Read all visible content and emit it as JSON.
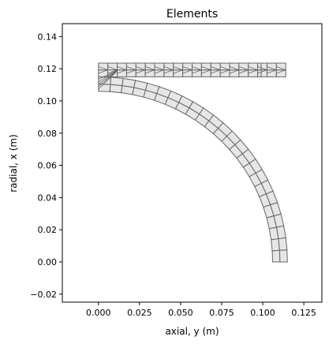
{
  "chart_data": {
    "type": "mesh",
    "title": "Elements",
    "xlabel": "axial, y (m)",
    "ylabel": "radial, x (m)",
    "xlim": [
      -0.022,
      0.136
    ],
    "ylim": [
      -0.025,
      0.148
    ],
    "xticks": [
      0.0,
      0.025,
      0.05,
      0.075,
      0.1,
      0.125
    ],
    "xtick_labels": [
      "0.000",
      "0.025",
      "0.050",
      "0.075",
      "0.100",
      "0.125"
    ],
    "yticks": [
      -0.02,
      0.0,
      0.02,
      0.04,
      0.06,
      0.08,
      0.1,
      0.12,
      0.14
    ],
    "ytick_labels": [
      "−0.02",
      "0.00",
      "0.02",
      "0.04",
      "0.06",
      "0.08",
      "0.10",
      "0.12",
      "0.14"
    ],
    "grid": false,
    "colors": {
      "fill": "#e6e6e6",
      "edge": "#666666"
    },
    "arc": {
      "center": [
        0.0,
        0.0
      ],
      "inner_radius": 0.106,
      "outer_radius": 0.115,
      "angle_start_deg": 0,
      "angle_end_deg": 90,
      "angular_divisions": 24,
      "radial_divisions": 2
    },
    "flange": {
      "y_min": 0.0,
      "y_max": 0.114,
      "x_min": 0.115,
      "x_max": 0.1235,
      "axial_divisions": 20,
      "radial_divisions": 2,
      "end_cap_y": 0.099
    }
  }
}
